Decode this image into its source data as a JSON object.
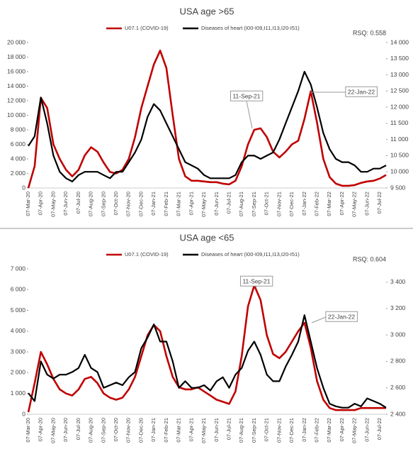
{
  "chart_data": [
    {
      "type": "line",
      "title": "USA age >65",
      "note": "RSQ: 0.558",
      "annotations": [
        "11-Sep-21",
        "22-Jan-22"
      ],
      "categories": [
        "07-Mar-20",
        null,
        "07-Apr-20",
        null,
        "07-May-20",
        null,
        "07-Jun-20",
        null,
        "07-Jul-20",
        null,
        "07-Aug-20",
        null,
        "07-Sep-20",
        null,
        "07-Oct-20",
        null,
        "07-Nov-20",
        null,
        "07-Dec-20",
        null,
        "07-Jan-21",
        null,
        "07-Feb-21",
        null,
        "07-Mar-21",
        null,
        "07-Apr-21",
        null,
        "07-May-21",
        null,
        "07-Jun-21",
        null,
        "07-Jul-21",
        null,
        "07-Aug-21",
        null,
        "07-Sep-21",
        null,
        "07-Oct-21",
        null,
        "07-Nov-21",
        null,
        "07-Dec-21",
        null,
        "07-Jan-22",
        null,
        "07-Feb-22",
        null,
        "07-Mar-22",
        null,
        "07-Apr-22",
        null,
        "07-May-22",
        null,
        "07-Jun-22",
        null,
        "07-Jul-22",
        null
      ],
      "series": [
        {
          "name": "U07.1 (COVID-19)",
          "color": "#c00000",
          "values": [
            0,
            3000,
            12400,
            11000,
            6000,
            4000,
            2500,
            1600,
            2500,
            4500,
            5600,
            5000,
            3500,
            2200,
            2000,
            2500,
            4000,
            7000,
            11000,
            14000,
            17000,
            18900,
            16500,
            10000,
            4000,
            1600,
            1000,
            1000,
            900,
            800,
            800,
            600,
            500,
            1000,
            3000,
            6000,
            8000,
            8200,
            7000,
            5000,
            4200,
            5000,
            6000,
            6500,
            9500,
            13300,
            9000,
            4000,
            1500,
            600,
            300,
            300,
            400,
            700,
            900,
            1000,
            1300,
            1800
          ]
        },
        {
          "name": "Diseases of heart (I00-I09,I11,I13,I20-I51)",
          "color": "#000000",
          "axis": "y2",
          "values": [
            10800,
            11100,
            12300,
            11500,
            10500,
            10000,
            9800,
            9700,
            9900,
            10000,
            10000,
            10000,
            9900,
            9800,
            10000,
            10000,
            10300,
            10600,
            11000,
            11700,
            12100,
            11900,
            11500,
            11100,
            10700,
            10300,
            10200,
            10100,
            9900,
            9800,
            9800,
            9800,
            9800,
            9900,
            10300,
            10500,
            10500,
            10400,
            10500,
            10600,
            11000,
            11500,
            12000,
            12500,
            13100,
            12700,
            12000,
            11200,
            10700,
            10400,
            10300,
            10300,
            10200,
            10000,
            10000,
            10100,
            10100,
            10200
          ]
        }
      ],
      "ylim": [
        0,
        20000
      ],
      "yticks": [
        0,
        {
          "value": 2000,
          "label": "2 000"
        },
        {
          "value": 4000,
          "label": "4 000"
        },
        {
          "value": 6000,
          "label": "6 000"
        },
        {
          "value": 8000,
          "label": "8 000"
        },
        {
          "value": 10000,
          "label": "10 000"
        },
        {
          "value": 12000,
          "label": "12 000"
        },
        {
          "value": 14000,
          "label": "14 000"
        },
        {
          "value": 16000,
          "label": "16 000"
        },
        {
          "value": 18000,
          "label": "18 000"
        },
        {
          "value": 20000,
          "label": "20 000"
        }
      ],
      "y2lim": [
        9500,
        14000
      ],
      "y2ticks": [
        {
          "value": 9500,
          "label": "9 500"
        },
        {
          "value": 10000,
          "label": "10 000"
        },
        {
          "value": 10500,
          "label": "10 500"
        },
        {
          "value": 11000,
          "label": "11 000"
        },
        {
          "value": 11500,
          "label": "11 500"
        },
        {
          "value": 12000,
          "label": "12 000"
        },
        {
          "value": 12500,
          "label": "12 500"
        },
        {
          "value": 13000,
          "label": "13 000"
        },
        {
          "value": 13500,
          "label": "13 500"
        },
        {
          "value": 14000,
          "label": "14 000"
        }
      ],
      "legend": "top"
    },
    {
      "type": "line",
      "title": "USA age <65",
      "note": "RSQ: 0.604",
      "annotations": [
        "11-Sep-21",
        "22-Jan-22"
      ],
      "categories": [
        "07-Mar-20",
        null,
        "07-Apr-20",
        null,
        "07-May-20",
        null,
        "07-Jun-20",
        null,
        "07-Jul-20",
        null,
        "07-Aug-20",
        null,
        "07-Sep-20",
        null,
        "07-Oct-20",
        null,
        "07-Nov-20",
        null,
        "07-Dec-20",
        null,
        "07-Jan-21",
        null,
        "07-Feb-21",
        null,
        "07-Mar-21",
        null,
        "07-Apr-21",
        null,
        "07-May-21",
        null,
        "07-Jun-21",
        null,
        "07-Jul-21",
        null,
        "07-Aug-21",
        null,
        "07-Sep-21",
        null,
        "07-Oct-21",
        null,
        "07-Nov-21",
        null,
        "07-Dec-21",
        null,
        "07-Jan-22",
        null,
        "07-Feb-22",
        null,
        "07-Mar-22",
        null,
        "07-Apr-22",
        null,
        "07-May-22",
        null,
        "07-Jun-22",
        null,
        "07-Jul-22",
        null
      ],
      "series": [
        {
          "name": "U07.1 (COVID-19)",
          "color": "#c00000",
          "values": [
            100,
            1500,
            3000,
            2400,
            1700,
            1200,
            1000,
            900,
            1200,
            1700,
            1800,
            1500,
            1000,
            800,
            700,
            800,
            1200,
            1800,
            2800,
            3800,
            4300,
            4000,
            2800,
            1800,
            1300,
            1200,
            1200,
            1300,
            1100,
            900,
            700,
            600,
            500,
            1100,
            2800,
            5200,
            6200,
            5500,
            3800,
            2900,
            2700,
            3000,
            3500,
            4000,
            4400,
            3200,
            1600,
            700,
            300,
            200,
            200,
            200,
            200,
            300,
            300,
            300,
            300,
            300
          ]
        },
        {
          "name": "Diseases of heart (I00-I09,I11,I13,I20-I51)",
          "color": "#000000",
          "axis": "y2",
          "values": [
            2560,
            2500,
            2800,
            2700,
            2670,
            2700,
            2700,
            2720,
            2750,
            2850,
            2750,
            2720,
            2600,
            2620,
            2640,
            2620,
            2680,
            2720,
            2900,
            2980,
            3080,
            2950,
            2950,
            2800,
            2600,
            2650,
            2600,
            2600,
            2620,
            2580,
            2650,
            2680,
            2600,
            2700,
            2750,
            2880,
            2950,
            2850,
            2700,
            2650,
            2650,
            2760,
            2850,
            2950,
            3150,
            2950,
            2750,
            2600,
            2480,
            2460,
            2450,
            2450,
            2480,
            2460,
            2520,
            2500,
            2480,
            2450
          ]
        }
      ],
      "ylim": [
        0,
        7000
      ],
      "yticks": [
        0,
        {
          "value": 1000,
          "label": "1 000"
        },
        {
          "value": 2000,
          "label": "2 000"
        },
        {
          "value": 3000,
          "label": "3 000"
        },
        {
          "value": 4000,
          "label": "4 000"
        },
        {
          "value": 5000,
          "label": "5 000"
        },
        {
          "value": 6000,
          "label": "6 000"
        },
        {
          "value": 7000,
          "label": "7 000"
        }
      ],
      "y2lim": [
        2400,
        3500
      ],
      "y2ticks": [
        {
          "value": 2400,
          "label": "2 400"
        },
        {
          "value": 2600,
          "label": "2 600"
        },
        {
          "value": 2800,
          "label": "2 800"
        },
        {
          "value": 3000,
          "label": "3 000"
        },
        {
          "value": 3200,
          "label": "3 200"
        },
        {
          "value": 3400,
          "label": "3 400"
        }
      ],
      "legend": "top"
    }
  ]
}
